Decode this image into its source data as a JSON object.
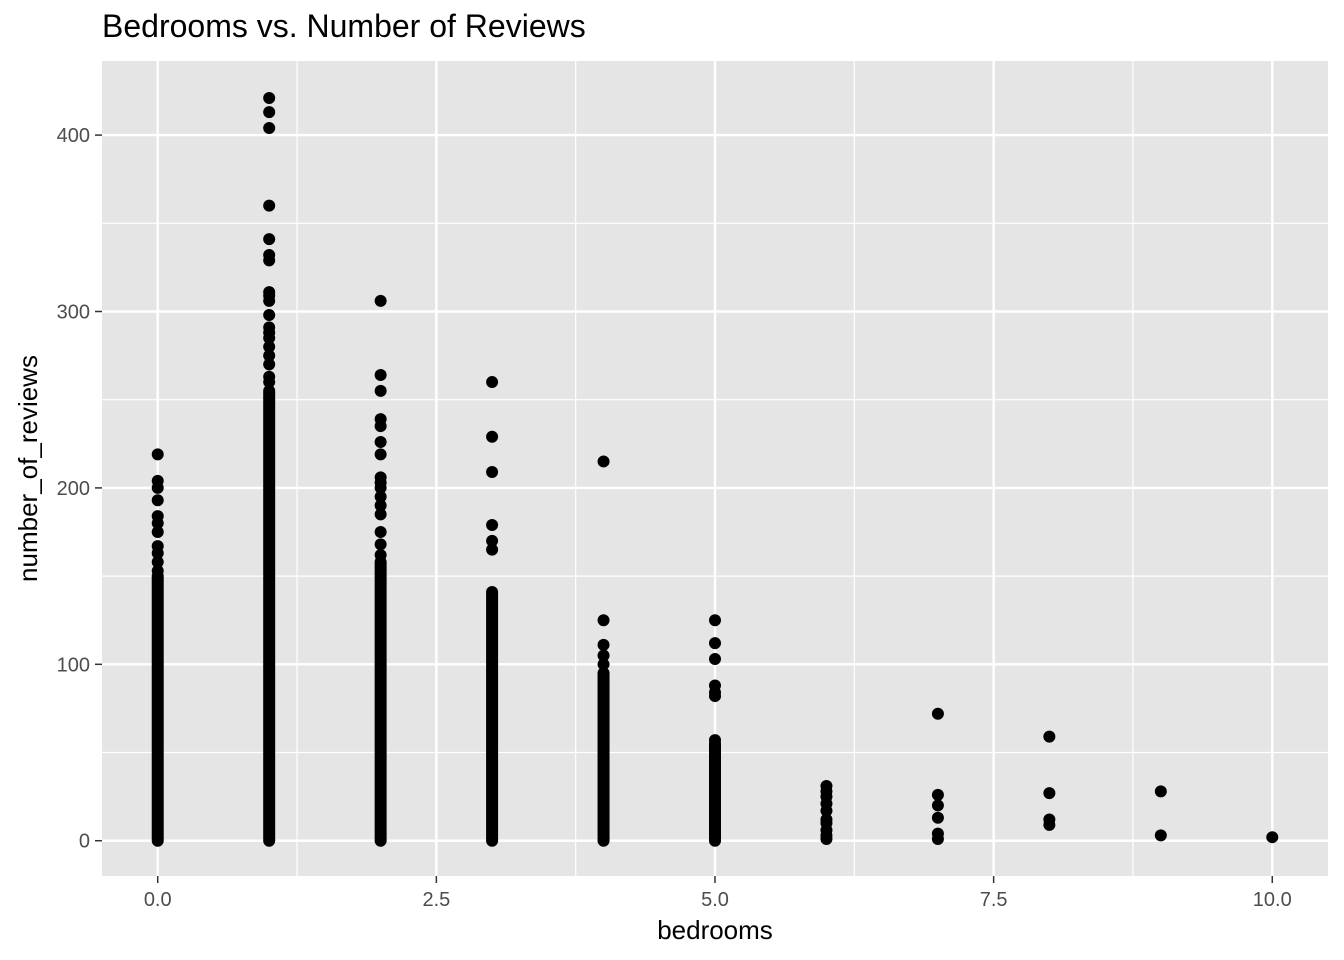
{
  "chart_data": {
    "type": "scatter",
    "title": "Bedrooms vs. Number of Reviews",
    "xlabel": "bedrooms",
    "ylabel": "number_of_reviews",
    "xlim": [
      -0.5,
      10.5
    ],
    "ylim": [
      -20,
      442
    ],
    "x_ticks": [
      0,
      2.5,
      5,
      7.5,
      10
    ],
    "x_tick_labels": [
      "0.0",
      "2.5",
      "5.0",
      "7.5",
      "10.0"
    ],
    "y_ticks": [
      0,
      100,
      200,
      300,
      400
    ],
    "y_tick_labels": [
      "0",
      "100",
      "200",
      "300",
      "400"
    ],
    "grid": true,
    "legend": "none",
    "colors": {
      "panel": "#e5e5e5",
      "grid": "#ffffff",
      "point": "#000000"
    },
    "series": [
      {
        "x": 0,
        "dense_range": [
          0,
          150
        ],
        "extra_y": [
          153,
          158,
          163,
          167,
          175,
          180,
          184,
          193,
          200,
          204,
          219
        ]
      },
      {
        "x": 1,
        "dense_range": [
          0,
          255
        ],
        "extra_y": [
          260,
          263,
          270,
          275,
          280,
          285,
          288,
          291,
          298,
          306,
          309,
          311,
          329,
          332,
          341,
          360,
          404,
          413,
          421
        ]
      },
      {
        "x": 2,
        "dense_range": [
          0,
          158
        ],
        "extra_y": [
          162,
          168,
          175,
          185,
          190,
          195,
          200,
          203,
          206,
          219,
          226,
          235,
          239,
          255,
          264,
          306
        ]
      },
      {
        "x": 3,
        "dense_range": [
          0,
          141
        ],
        "extra_y": [
          165,
          170,
          179,
          209,
          229,
          260
        ]
      },
      {
        "x": 4,
        "dense_range": [
          0,
          95
        ],
        "extra_y": [
          100,
          105,
          111,
          125,
          215
        ]
      },
      {
        "x": 5,
        "dense_range": [
          0,
          55
        ],
        "extra_y": [
          57,
          82,
          84,
          88,
          103,
          112,
          125
        ]
      },
      {
        "x": 6,
        "dense_range": null,
        "extra_y": [
          1,
          3,
          6,
          10,
          12,
          17,
          21,
          25,
          28,
          31
        ]
      },
      {
        "x": 7,
        "dense_range": null,
        "extra_y": [
          1,
          4,
          13,
          20,
          26,
          72
        ]
      },
      {
        "x": 8,
        "dense_range": null,
        "extra_y": [
          9,
          12,
          27,
          59
        ]
      },
      {
        "x": 9,
        "dense_range": null,
        "extra_y": [
          3,
          28
        ]
      },
      {
        "x": 10,
        "dense_range": null,
        "extra_y": [
          2
        ]
      }
    ]
  }
}
